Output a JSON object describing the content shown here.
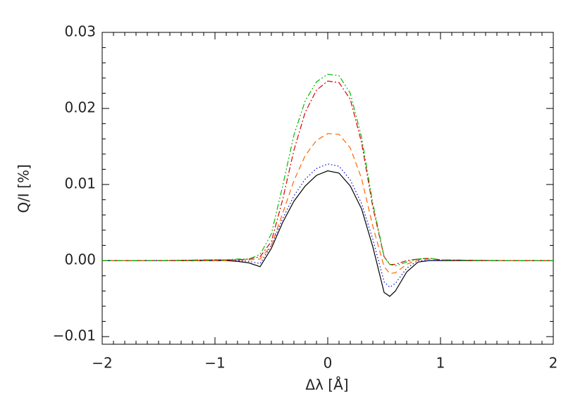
{
  "chart_data": {
    "type": "line",
    "xlabel": "Δλ [Å]",
    "ylabel": "Q/I [%]",
    "x": [
      -2,
      -1.5,
      -1,
      -0.9,
      -0.8,
      -0.7,
      -0.6,
      -0.5,
      -0.4,
      -0.3,
      -0.2,
      -0.1,
      0,
      0.1,
      0.2,
      0.3,
      0.4,
      0.5,
      0.55,
      0.6,
      0.7,
      0.8,
      0.9,
      1,
      1.5,
      2
    ],
    "series": [
      {
        "color": "#000000",
        "dash": "none",
        "values": [
          0,
          0,
          0,
          0,
          -0.0001,
          -0.0003,
          -0.0008,
          0.0016,
          0.005,
          0.0078,
          0.0098,
          0.0112,
          0.0118,
          0.0115,
          0.0098,
          0.0068,
          0.0018,
          -0.0042,
          -0.0047,
          -0.004,
          -0.0015,
          -0.0002,
          0,
          0,
          0,
          0
        ]
      },
      {
        "color": "#0000cc",
        "dash": "1.5 3",
        "values": [
          0,
          0,
          0,
          0,
          0,
          -0.0001,
          -0.0004,
          0.002,
          0.0055,
          0.0085,
          0.0107,
          0.0121,
          0.0127,
          0.0124,
          0.0106,
          0.0075,
          0.0028,
          -0.0028,
          -0.0035,
          -0.003,
          -0.001,
          0,
          0,
          0,
          0,
          0
        ]
      },
      {
        "color": "#ff6600",
        "dash": "8 5",
        "values": [
          0,
          0,
          0,
          0,
          0.0001,
          0.0001,
          0.0002,
          0.002,
          0.0062,
          0.0105,
          0.0138,
          0.0158,
          0.0167,
          0.0166,
          0.0148,
          0.0108,
          0.0045,
          -0.0008,
          -0.0017,
          -0.0016,
          -0.0005,
          0.0001,
          0.0002,
          0.0001,
          0,
          0
        ]
      },
      {
        "color": "#dd0000",
        "dash": "8 3 2 3",
        "values": [
          0,
          0,
          0.0001,
          0.0001,
          0.0001,
          0.0002,
          0.0005,
          0.0025,
          0.008,
          0.0145,
          0.0195,
          0.0224,
          0.0236,
          0.0234,
          0.0212,
          0.0155,
          0.007,
          0.0005,
          -0.0005,
          -0.0005,
          0,
          0.0002,
          0.0003,
          0.0001,
          0,
          0
        ]
      },
      {
        "color": "#00bb00",
        "dash": "8 3 2 3 2 3",
        "values": [
          0,
          0,
          0.0001,
          0.0001,
          0.0002,
          0.0002,
          0.0008,
          0.0035,
          0.0098,
          0.0165,
          0.021,
          0.0235,
          0.0245,
          0.0243,
          0.022,
          0.0162,
          0.0075,
          0.0005,
          -0.0005,
          -0.0007,
          -0.0002,
          0.0002,
          0.0003,
          0.0001,
          0,
          0
        ]
      }
    ],
    "xlim": [
      -2,
      2
    ],
    "ylim": [
      -0.011,
      0.03
    ],
    "xticks": [
      {
        "value": -2,
        "label": "−2"
      },
      {
        "value": -1,
        "label": "−1"
      },
      0,
      1,
      2
    ],
    "yticks": [
      {
        "value": -0.01,
        "label": "−0.01"
      },
      {
        "value": 0,
        "label": "0.00"
      },
      0.01,
      0.02,
      0.03
    ]
  }
}
